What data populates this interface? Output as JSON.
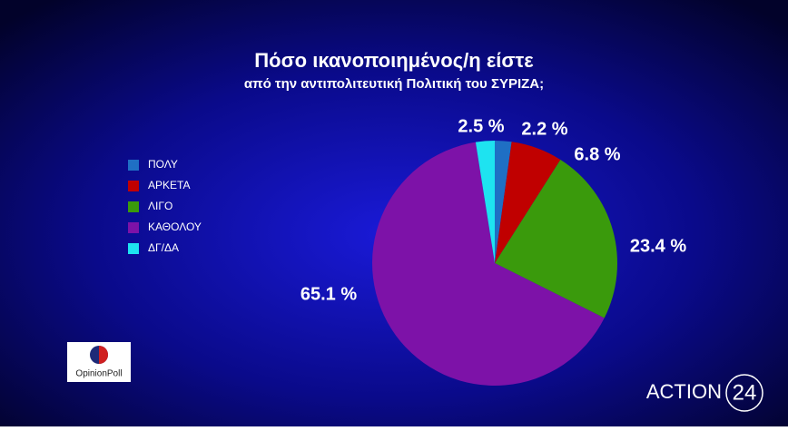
{
  "chart_data": {
    "type": "pie",
    "title": "Πόσο ικανοποιημένος/η είστε",
    "subtitle": "από την αντιπολιτευτική Πολιτική του ΣΥΡΙΖΑ;",
    "categories": [
      "ΠΟΛΥ",
      "ΑΡΚΕΤΑ",
      "ΛΙΓΟ",
      "ΚΑΘΟΛΟΥ",
      "ΔΓ/ΔΑ"
    ],
    "values": [
      2.2,
      6.8,
      23.4,
      65.1,
      2.5
    ],
    "value_labels": [
      "2.2 %",
      "6.8 %",
      "23.4 %",
      "65.1 %",
      "2.5 %"
    ],
    "colors": [
      "#1f6fc4",
      "#c00000",
      "#3a9a0c",
      "#7d12a8",
      "#1ee3f0"
    ],
    "legend": "left"
  },
  "logos": {
    "pollster": "OpinionPoll",
    "channel": "ACTION",
    "channel_number": "24"
  }
}
